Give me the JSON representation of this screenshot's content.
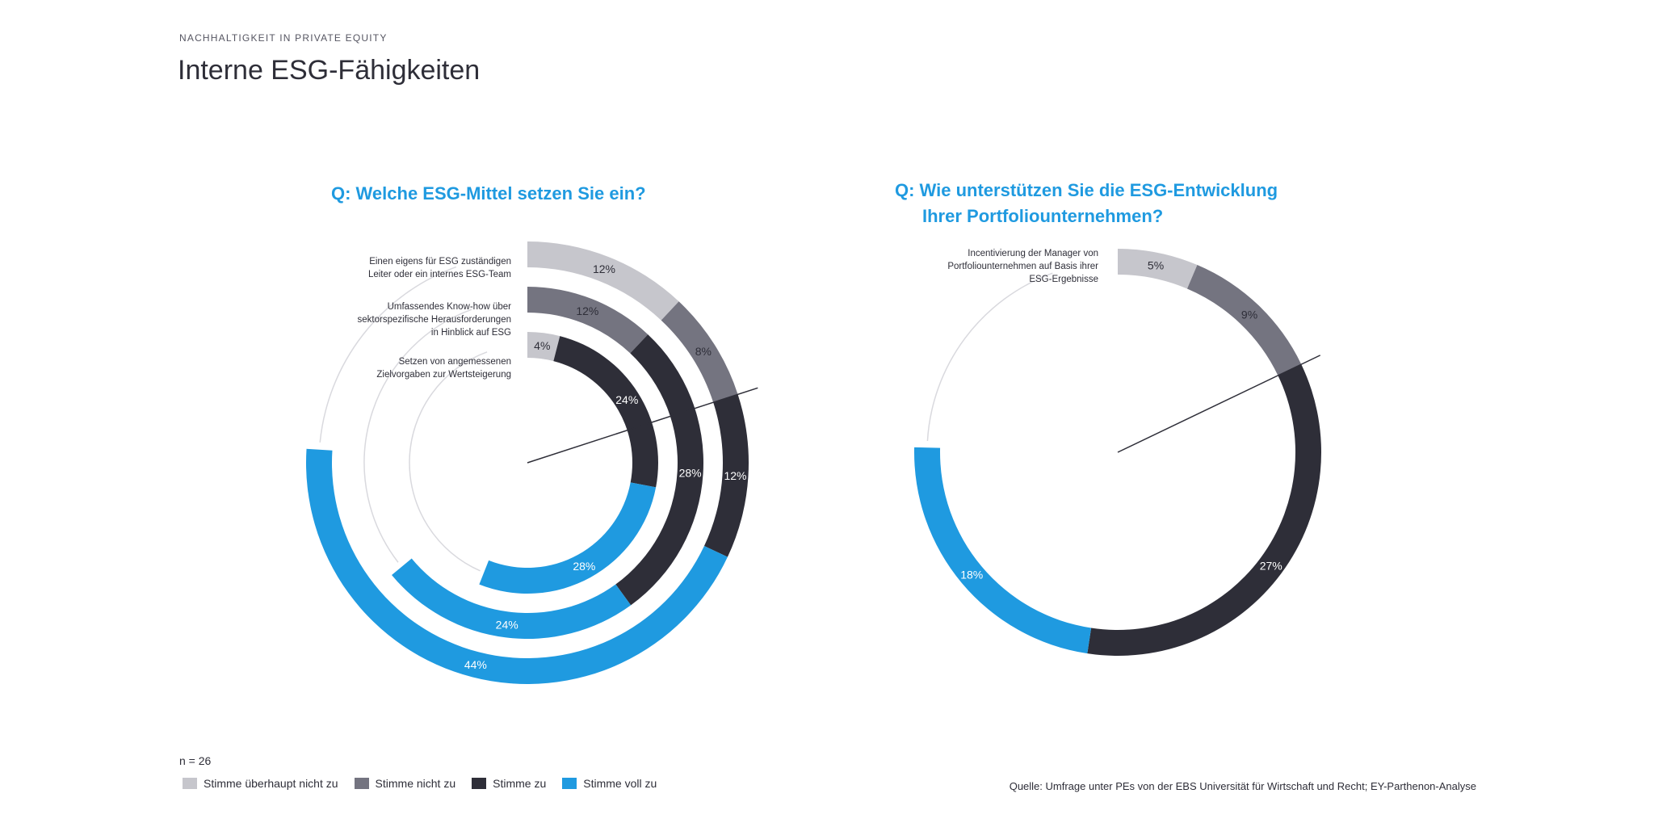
{
  "header": {
    "supertitle": "NACHHALTIGKEIT IN PRIVATE EQUITY",
    "title": "Interne ESG-Fähigkeiten"
  },
  "colors": {
    "accent": "#1f9ae0",
    "stimme_ueberhaupt_nicht_zu": "#c6c6cc",
    "stimme_nicht_zu": "#747480",
    "stimme_zu": "#2e2e38",
    "stimme_voll_zu": "#1f9ae0",
    "track": "#d9d9de"
  },
  "left_question": "Q: Welche ESG-Mittel setzen Sie ein?",
  "right_question": {
    "line1": "Q: Wie unterstützen Sie die ESG-Entwicklung",
    "line2": "Ihrer Portfoliounternehmen?"
  },
  "ring_labels": {
    "left": [
      [
        "Einen eigens für ESG zuständigen",
        "Leiter oder ein internes ESG-Team"
      ],
      [
        "Umfassendes Know-how über",
        "sektorspezifische Herausforderungen",
        "in Hinblick auf ESG"
      ],
      [
        "Setzen von angemessenen",
        "Zielvorgaben zur Wertsteigerung"
      ]
    ],
    "right": [
      [
        "Incentivierung der Manager von",
        "Portfoliounternehmen auf Basis ihrer",
        "ESG-Ergebnisse"
      ]
    ]
  },
  "chart_data": [
    {
      "type": "radial_bar",
      "title": "Q: Welche ESG-Mittel setzen Sie ein?",
      "legend": [
        "Stimme überhaupt nicht zu",
        "Stimme nicht zu",
        "Stimme zu",
        "Stimme voll zu"
      ],
      "categories": [
        "Einen eigens für ESG zuständigen Leiter oder ein internes ESG-Team",
        "Umfassendes Know-how über sektorspezifische Herausforderungen in Hinblick auf ESG",
        "Setzen von angemessenen Zielvorgaben zur Wertsteigerung"
      ],
      "series": [
        {
          "name": "Stimme überhaupt nicht zu",
          "values": [
            12,
            0,
            4
          ]
        },
        {
          "name": "Stimme nicht zu",
          "values": [
            8,
            12,
            0
          ]
        },
        {
          "name": "Stimme zu",
          "values": [
            12,
            28,
            24
          ]
        },
        {
          "name": "Stimme voll zu",
          "values": [
            44,
            24,
            28
          ]
        }
      ],
      "value_labels": [
        [
          "12%",
          "8%",
          "12%",
          "44%"
        ],
        [
          "",
          "12%",
          "28%",
          "24%"
        ],
        [
          "4%",
          "",
          "24%",
          "28%"
        ]
      ],
      "unit": "%"
    },
    {
      "type": "radial_bar",
      "title": "Q: Wie unterstützen Sie die ESG-Entwicklung Ihrer Portfoliounternehmen?",
      "legend": [
        "Stimme überhaupt nicht zu",
        "Stimme nicht zu",
        "Stimme zu",
        "Stimme voll zu"
      ],
      "categories": [
        "Incentivierung der Manager von Portfoliounternehmen auf Basis ihrer ESG-Ergebnisse"
      ],
      "series": [
        {
          "name": "Stimme überhaupt nicht zu",
          "values": [
            5
          ]
        },
        {
          "name": "Stimme nicht zu",
          "values": [
            9
          ]
        },
        {
          "name": "Stimme zu",
          "values": [
            27
          ]
        },
        {
          "name": "Stimme voll zu",
          "values": [
            18
          ]
        }
      ],
      "value_labels": [
        [
          "5%",
          "9%",
          "27%",
          "18%"
        ]
      ],
      "unit": "%"
    }
  ],
  "footer": {
    "n": "n = 26",
    "legend": [
      "Stimme überhaupt nicht zu",
      "Stimme nicht zu",
      "Stimme zu",
      "Stimme voll zu"
    ],
    "source": "Quelle: Umfrage unter PEs von der EBS Universität für Wirtschaft und Recht; EY-Parthenon-Analyse"
  }
}
